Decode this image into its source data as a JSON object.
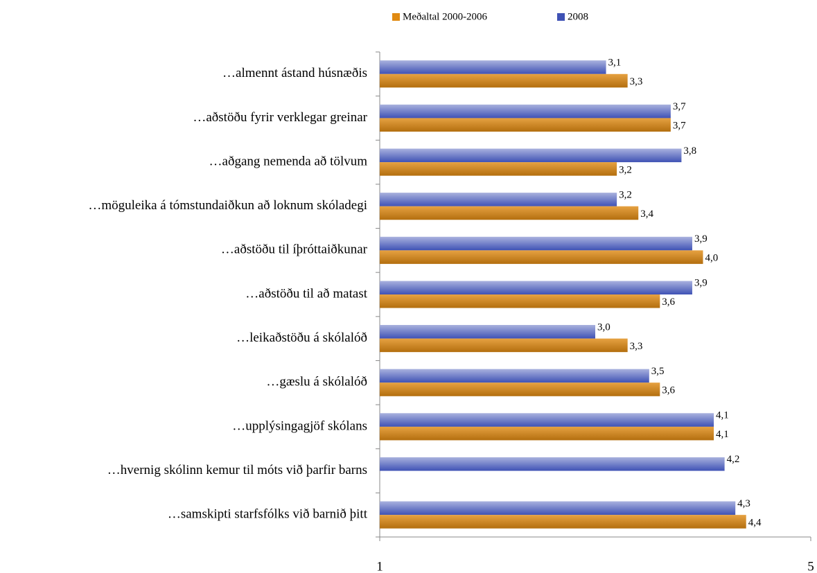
{
  "chart_data": {
    "type": "hbar",
    "categories": [
      "…almennt ástand húsnæðis",
      "…aðstöðu fyrir verklegar greinar",
      "…aðgang nemenda að tölvum",
      "…möguleika á tómstundaiðkun að loknum skóladegi",
      "…aðstöðu til íþróttaiðkunar",
      "…aðstöðu til að matast",
      "…leikaðstöðu á skólalóð",
      "…gæslu á skólalóð",
      "…upplýsingagjöf skólans",
      "…hvernig skólinn kemur til móts við þarfir barns",
      "…samskipti starfsfólks við barnið þitt"
    ],
    "series": [
      {
        "name": "Meðaltal 2000-2006",
        "color": "#e08a12",
        "values": [
          3.3,
          3.7,
          3.2,
          3.4,
          4.0,
          3.6,
          3.3,
          3.6,
          4.1,
          null,
          4.4
        ],
        "value_labels": [
          "3,3",
          "3,7",
          "3,2",
          "3,4",
          "4,0",
          "3,6",
          "3,3",
          "3,6",
          "4,1",
          null,
          "4,4"
        ]
      },
      {
        "name": "2008",
        "color": "#3f52b5",
        "values": [
          3.1,
          3.7,
          3.8,
          3.2,
          3.9,
          3.9,
          3.0,
          3.5,
          4.1,
          4.2,
          4.3
        ],
        "value_labels": [
          "3,1",
          "3,7",
          "3,8",
          "3,2",
          "3,9",
          "3,9",
          "3,0",
          "3,5",
          "4,1",
          "4,2",
          "4,3"
        ]
      }
    ],
    "xlim": [
      1,
      5
    ],
    "xticks": [
      1,
      5
    ],
    "legend": "top"
  }
}
